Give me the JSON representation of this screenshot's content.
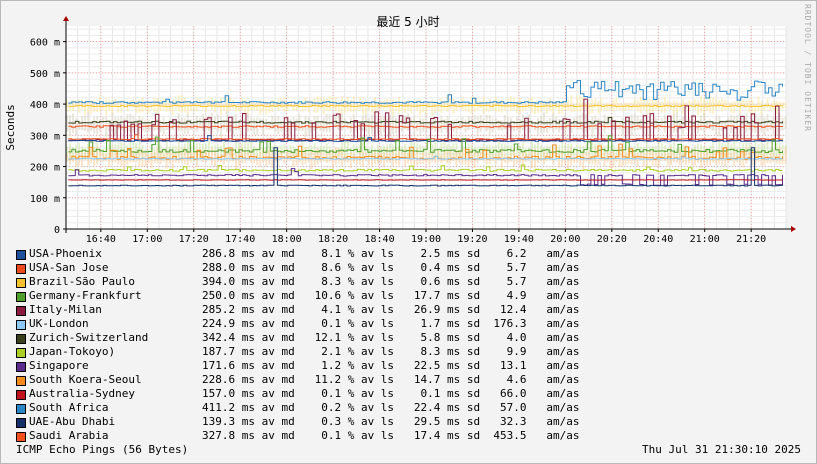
{
  "chart_data": {
    "type": "line",
    "title": "最近 5 小时",
    "ylabel": "Seconds",
    "ylim": [
      0,
      650
    ],
    "yticks": [
      0,
      100,
      200,
      300,
      400,
      500,
      600
    ],
    "yticklabels": [
      "0",
      "100 m",
      "200 m",
      "300 m",
      "400 m",
      "500 m",
      "600 m"
    ],
    "xlim": [
      "16:25",
      "21:35"
    ],
    "xticklabels": [
      "16:40",
      "17:00",
      "17:20",
      "17:40",
      "18:00",
      "18:20",
      "18:40",
      "19:00",
      "19:20",
      "19:40",
      "20:00",
      "20:20",
      "20:40",
      "21:00",
      "21:20"
    ],
    "grid": true,
    "series": [
      {
        "name": "USA-Phoenix",
        "color": "#1b4f9c",
        "stats": "286.8 ms av md    8.1 % av ls    2.5 ms sd    6.2   am/as"
      },
      {
        "name": "USA-San Jose",
        "color": "#e94b1f",
        "stats": "288.0 ms av md    8.6 % av ls    0.4 ms sd    5.7   am/as"
      },
      {
        "name": "Brazil-São Paulo",
        "color": "#f2c230",
        "stats": "394.0 ms av md    8.3 % av ls    0.6 ms sd    5.7   am/as"
      },
      {
        "name": "Germany-Frankfurt",
        "color": "#4f9f2a",
        "stats": "250.0 ms av md   10.6 % av ls   17.7 ms sd    4.9   am/as"
      },
      {
        "name": "Italy-Milan",
        "color": "#8a1a3e",
        "stats": "285.2 ms av md    4.1 % av ls   26.9 ms sd   12.4   am/as"
      },
      {
        "name": "UK-London",
        "color": "#8ec9f5",
        "stats": "224.9 ms av md    0.1 % av ls    1.7 ms sd  176.3   am/as"
      },
      {
        "name": "Zurich-Switzerland",
        "color": "#39401a",
        "stats": "342.4 ms av md   12.1 % av ls    5.8 ms sd    4.0   am/as"
      },
      {
        "name": "Japan-Tokoyo)",
        "color": "#a9d023",
        "stats": "187.7 ms av md    2.1 % av ls    8.3 ms sd    9.9   am/as"
      },
      {
        "name": "Singapore",
        "color": "#5b2a8a",
        "stats": "171.6 ms av md    1.2 % av ls   22.5 ms sd   13.1   am/as"
      },
      {
        "name": "South Koera-Seoul",
        "color": "#f28b1c",
        "stats": "228.6 ms av md   11.2 % av ls   14.7 ms sd    4.6   am/as"
      },
      {
        "name": "Australia-Sydney",
        "color": "#c0121b",
        "stats": "157.0 ms av md    0.1 % av ls    0.1 ms sd   66.0   am/as"
      },
      {
        "name": "South Africa",
        "color": "#2a86c7",
        "stats": "411.2 ms av md    0.2 % av ls   22.4 ms sd   57.0   am/as"
      },
      {
        "name": "UAE-Abu Dhabi",
        "color": "#14306b",
        "stats": "139.3 ms av md    0.3 % av ls   29.5 ms sd   32.3   am/as"
      },
      {
        "name": "Saudi Arabia",
        "color": "#f0501e",
        "stats": "327.8 ms av md    0.1 % av ls   17.4 ms sd  453.5   am/as"
      }
    ]
  },
  "footer": {
    "left": "ICMP Echo Pings (56 Bytes)",
    "right": "Thu Jul 31 21:30:10 2025"
  },
  "credit": "RRDTOOL / TOBI OETIKER"
}
